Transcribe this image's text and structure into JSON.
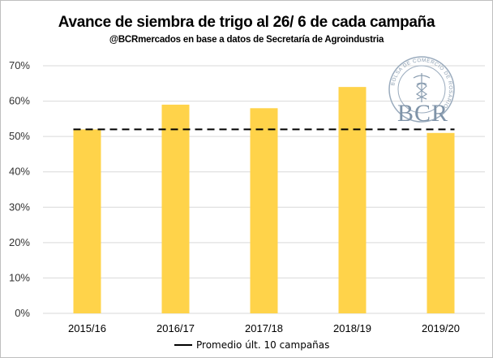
{
  "chart_data": {
    "type": "bar",
    "title": "Avance de siembra de trigo al 26/ 6 de cada campaña",
    "subtitle": "@BCRmercados en base a datos de Secretaría de Agroindustria",
    "categories": [
      "2015/16",
      "2016/17",
      "2017/18",
      "2018/19",
      "2019/20"
    ],
    "series": [
      {
        "values": [
          52,
          59,
          58,
          64,
          51
        ],
        "color": "#ffd34a"
      }
    ],
    "reference_line": {
      "name": "Promedio últ. 10 campañas",
      "value": 52,
      "style": "dashed",
      "color": "#000000"
    },
    "ylim": [
      0,
      70
    ],
    "yticks": [
      0,
      10,
      20,
      30,
      40,
      50,
      60,
      70
    ],
    "ytick_labels": [
      "0%",
      "10%",
      "20%",
      "30%",
      "40%",
      "50%",
      "60%",
      "70%"
    ],
    "grid": true,
    "legend_position": "bottom"
  },
  "logo": {
    "ring_text": "BOLSA DE COMERCIO DE ROSARIO",
    "letters": "BCR",
    "color": "#7f93a8"
  }
}
